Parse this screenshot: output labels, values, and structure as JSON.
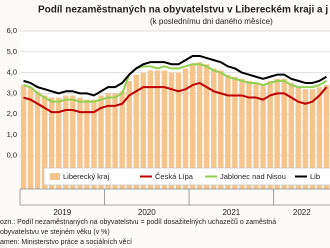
{
  "chart_data": {
    "type": "bar",
    "title": "Podíl nezaměstnaných na obyvatelstvu v Libereckém kraji a j",
    "subtitle": "(k poslednímu dni daného měsíce)",
    "categories": [
      null,
      null,
      null,
      null,
      null,
      null,
      null,
      null,
      null,
      null,
      null,
      null,
      null,
      null,
      null,
      null,
      null,
      null,
      null,
      null,
      null,
      null,
      null,
      null,
      null,
      null,
      null,
      null,
      null,
      null,
      null,
      null,
      null,
      null,
      null,
      null,
      null,
      null,
      null,
      null,
      null,
      null,
      null,
      null
    ],
    "year_labels": [
      "2019",
      "2020",
      "2021",
      "2022"
    ],
    "ylim": [
      -1.6,
      6.0
    ],
    "yticks": [
      {
        "value": 0,
        "label": "0,0"
      },
      {
        "value": 1,
        "label": "1,0"
      },
      {
        "value": 2,
        "label": "2,0"
      },
      {
        "value": 3,
        "label": "3,0"
      },
      {
        "value": 4,
        "label": "4,0"
      },
      {
        "value": 5,
        "label": "5,0"
      },
      {
        "value": 6,
        "label": "6,0"
      }
    ],
    "grid": true,
    "series": [
      {
        "name": "Liberecký kraj",
        "type": "bar",
        "color": "#f6c58e",
        "values": [
          3.4,
          3.3,
          3.1,
          2.9,
          2.8,
          2.8,
          2.9,
          2.9,
          2.8,
          2.7,
          2.7,
          2.9,
          3.0,
          3.0,
          3.1,
          3.6,
          3.9,
          4.0,
          4.1,
          4.1,
          4.1,
          4.0,
          4.0,
          4.2,
          4.4,
          4.5,
          4.4,
          4.2,
          4.1,
          3.9,
          3.8,
          3.7,
          3.6,
          3.5,
          3.4,
          3.6,
          3.7,
          3.7,
          3.5,
          3.3,
          3.2,
          3.2,
          3.3,
          3.4
        ]
      },
      {
        "name": "Česká Lípa",
        "type": "line",
        "color": "#c00000",
        "values": [
          2.8,
          2.7,
          2.5,
          2.3,
          2.1,
          2.1,
          2.2,
          2.2,
          2.1,
          2.1,
          2.1,
          2.3,
          2.4,
          2.4,
          2.5,
          2.9,
          3.1,
          3.3,
          3.3,
          3.3,
          3.3,
          3.2,
          3.1,
          3.2,
          3.4,
          3.5,
          3.3,
          3.1,
          3.0,
          2.9,
          2.9,
          2.9,
          2.8,
          2.8,
          2.7,
          2.9,
          3.0,
          3.0,
          2.8,
          2.6,
          2.5,
          2.6,
          2.9,
          3.3
        ]
      },
      {
        "name": "Jablonec nad Nisou",
        "type": "line",
        "color": "#92d050",
        "values": [
          3.4,
          3.3,
          3.0,
          2.8,
          2.6,
          2.6,
          2.7,
          2.7,
          2.6,
          2.6,
          2.6,
          2.7,
          2.8,
          2.8,
          3.0,
          3.9,
          4.2,
          4.3,
          4.3,
          4.2,
          4.3,
          4.2,
          4.2,
          4.3,
          4.4,
          4.4,
          4.3,
          4.1,
          4.0,
          3.8,
          3.7,
          3.6,
          3.5,
          3.5,
          3.4,
          3.5,
          3.6,
          3.6,
          3.4,
          3.3,
          3.3,
          3.3,
          3.4,
          3.6
        ]
      },
      {
        "name": "Lib",
        "type": "line",
        "color": "#000000",
        "values": [
          3.6,
          3.5,
          3.3,
          3.2,
          3.1,
          3.0,
          3.1,
          3.1,
          3.0,
          3.0,
          2.9,
          3.1,
          3.3,
          3.3,
          3.5,
          3.9,
          4.2,
          4.4,
          4.5,
          4.5,
          4.5,
          4.4,
          4.4,
          4.6,
          4.8,
          4.8,
          4.7,
          4.6,
          4.5,
          4.3,
          4.2,
          4.0,
          3.9,
          3.8,
          3.7,
          3.8,
          3.9,
          3.9,
          3.7,
          3.6,
          3.5,
          3.5,
          3.6,
          3.8
        ]
      }
    ],
    "notes": [
      "ozn.: Podíl nezaměstnaných na obyvatelstvu = podíl dosažitelných uchazečů o zaměstná",
      "obyvatelstvu ve stejném věku (v %)",
      "amen: Ministerstvo práce a sociálních věcí"
    ]
  }
}
